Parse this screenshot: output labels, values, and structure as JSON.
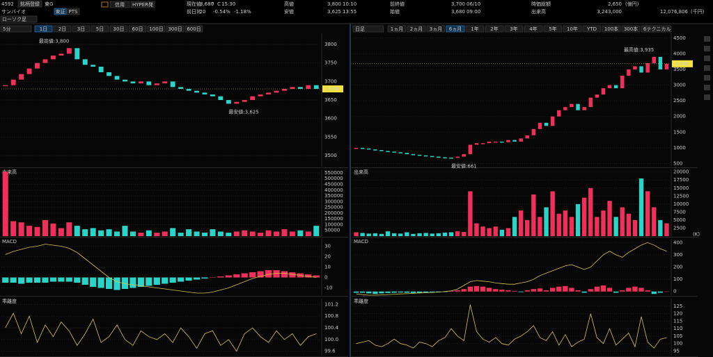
{
  "header": {
    "code": "4592",
    "buttons": [
      "銘柄登録",
      "東G",
      "東証",
      "PTS"
    ],
    "tags": [
      "信用",
      "HYPER発"
    ],
    "name": "サンバイオ",
    "chart_type": "ローソク足",
    "fields": [
      {
        "label": "現在値",
        "parts": [
          "3,680",
          "↑",
          "C",
          "15:30"
        ]
      },
      {
        "label": "前日比",
        "parts": [
          "-20",
          "-0.54%",
          "-1.18%"
        ]
      },
      {
        "label": "高値",
        "parts": [
          "3,800",
          "10:10"
        ]
      },
      {
        "label": "安値",
        "parts": [
          "3,625",
          "13:55"
        ]
      },
      {
        "label": "前終値",
        "parts": [
          "3,700",
          "06/10"
        ]
      },
      {
        "label": "始値",
        "parts": [
          "3,680",
          "09:00"
        ]
      },
      {
        "label": "時価総額",
        "parts": [
          "2,650",
          "(億円)"
        ]
      },
      {
        "label": "出来高",
        "parts": [
          "3,243,000",
          "12,076,806",
          "(千円)"
        ]
      }
    ]
  },
  "charts": [
    {
      "period": "5分",
      "ranges": [
        "1日",
        "2日",
        "3日",
        "5日",
        "30日",
        "60日",
        "100日",
        "300日",
        "600日"
      ],
      "active_index": 0,
      "price": {
        "ylim": [
          3470,
          3830
        ],
        "yticks": [
          3800,
          3750,
          3700,
          3650,
          3600,
          3550,
          3500
        ],
        "last_label": "3,680",
        "high_label": "最高値:3,800",
        "low_label": "最安値:3,625",
        "values": [
          3690,
          3705,
          3720,
          3735,
          3750,
          3760,
          3770,
          3775,
          3790,
          3760,
          3745,
          3740,
          3725,
          3715,
          3705,
          3700,
          3695,
          3700,
          3690,
          3695,
          3700,
          3685,
          3680,
          3675,
          3670,
          3665,
          3660,
          3650,
          3640,
          3645,
          3650,
          3660,
          3665,
          3670,
          3675,
          3680,
          3685,
          3680,
          3690,
          3680
        ]
      },
      "volume": {
        "title": "出来高",
        "ylim": [
          0,
          580000
        ],
        "yticks": [
          550000,
          500000,
          450000,
          400000,
          350000,
          300000,
          250000,
          200000,
          150000,
          100000,
          50000
        ],
        "values": [
          560000,
          130000,
          120000,
          90000,
          80000,
          140000,
          110000,
          70000,
          120000,
          90000,
          60000,
          70000,
          50000,
          60000,
          40000,
          90000,
          40000,
          30000,
          50000,
          30000,
          40000,
          70000,
          30000,
          60000,
          40000,
          30000,
          60000,
          40000,
          30000,
          40000,
          50000,
          40000,
          30000,
          50000,
          40000,
          60000,
          40000,
          50000,
          40000,
          90000
        ]
      },
      "macd": {
        "title": "MACD",
        "ylim": [
          -17,
          37
        ],
        "yticks": [
          30,
          20,
          10,
          0,
          -10
        ],
        "hist": [
          -5,
          -5,
          -6,
          -5,
          -5,
          -5,
          -4,
          -4,
          -4,
          -5,
          -7,
          -9,
          -10,
          -11,
          -12,
          -11,
          -10,
          -9,
          -8,
          -7,
          -6,
          -5,
          -4,
          -3,
          -2,
          -1,
          0,
          1,
          2,
          3,
          4,
          5,
          6,
          7,
          7,
          6,
          5,
          4,
          3,
          2
        ],
        "line": [
          22,
          25,
          27,
          29,
          30,
          32,
          31,
          30,
          28,
          24,
          18,
          12,
          6,
          0,
          -4,
          -6,
          -7,
          -8,
          -9,
          -10,
          -11,
          -12,
          -13,
          -14,
          -15,
          -15,
          -14,
          -12,
          -10,
          -7,
          -4,
          -1,
          1,
          3,
          4,
          4,
          3,
          2,
          1,
          0
        ]
      },
      "kairi": {
        "title": "乖離度",
        "ylim": [
          99.45,
          101.4
        ],
        "yticks": [
          101.2,
          100.8,
          100.4,
          {
            "value": 100,
            "label": "100.0"
          },
          99.6
        ],
        "values": [
          100.4,
          100.9,
          100.2,
          100.8,
          99.9,
          100.5,
          100.1,
          100.6,
          100.3,
          99.8,
          100.2,
          100.7,
          99.9,
          100.1,
          100.5,
          100,
          99.8,
          100.3,
          100.1,
          100,
          100.2,
          99.9,
          100.4,
          100.1,
          99.7,
          100.2,
          100.3,
          99.8,
          100,
          99.6,
          100.2,
          100.4,
          100.1,
          99.9,
          100.3,
          100,
          100.2,
          99.8,
          100.1,
          100.2
        ]
      }
    },
    {
      "period": "日足",
      "ranges": [
        "1ヵ月",
        "2ヵ月",
        "3ヵ月",
        "6ヵ月",
        "1年",
        "2年",
        "3年",
        "4年",
        "5年",
        "10年",
        "YTD",
        "100本",
        "300本",
        "600本"
      ],
      "active_index": 3,
      "tool": "テクニカル",
      "price": {
        "ylim": [
          400,
          4650
        ],
        "yticks": [
          4500,
          4000,
          3500,
          3000,
          2500,
          2000,
          1500,
          1000,
          500
        ],
        "last_label": "3,680",
        "high_label": "最高値:3,935",
        "low_label": "最安値:661",
        "values": [
          1000,
          980,
          950,
          930,
          900,
          880,
          860,
          840,
          800,
          780,
          760,
          740,
          720,
          700,
          690,
          680,
          720,
          800,
          1100,
          1150,
          1150,
          1200,
          1200,
          1180,
          1250,
          1200,
          1300,
          1400,
          1600,
          1800,
          1700,
          2000,
          2200,
          2300,
          2400,
          2200,
          2300,
          2600,
          2700,
          2900,
          3000,
          2900,
          3300,
          3500,
          3600,
          3400,
          3700,
          3900,
          3500,
          3680
        ]
      },
      "volume": {
        "title": "出来高",
        "unit": "(K)",
        "ylim": [
          0,
          20800
        ],
        "yticks": [
          20000,
          17500,
          15000,
          12500,
          10000,
          7500,
          5000,
          2500
        ],
        "values": [
          1200,
          1000,
          800,
          900,
          700,
          1500,
          900,
          800,
          1200,
          700,
          900,
          1000,
          800,
          900,
          1100,
          1200,
          1500,
          1300,
          14000,
          4000,
          3000,
          2500,
          3000,
          2000,
          2500,
          6000,
          8000,
          5000,
          13000,
          6000,
          9000,
          14000,
          7000,
          8000,
          6000,
          10000,
          12000,
          15000,
          6000,
          8000,
          11000,
          6000,
          9000,
          7000,
          5000,
          18000,
          14000,
          9000,
          5000,
          4000
        ]
      },
      "macd": {
        "title": "MACD",
        "ylim": [
          -30,
          430
        ],
        "yticks": [
          400,
          300,
          200,
          100,
          0
        ],
        "hist": [
          -10,
          -10,
          -15,
          -20,
          -15,
          -12,
          -10,
          -8,
          -10,
          -12,
          -10,
          -8,
          -6,
          -5,
          -4,
          5,
          10,
          20,
          40,
          45,
          40,
          30,
          20,
          15,
          10,
          5,
          -5,
          10,
          20,
          25,
          10,
          30,
          40,
          45,
          30,
          10,
          -10,
          20,
          40,
          50,
          30,
          -10,
          10,
          30,
          40,
          30,
          10,
          -20,
          -10,
          0
        ],
        "line": [
          -20,
          -25,
          -30,
          -30,
          -28,
          -25,
          -22,
          -20,
          -18,
          -15,
          -12,
          -10,
          -8,
          -5,
          0,
          5,
          20,
          50,
          80,
          90,
          85,
          80,
          70,
          65,
          60,
          60,
          70,
          80,
          100,
          130,
          150,
          170,
          190,
          210,
          220,
          200,
          180,
          200,
          250,
          300,
          330,
          300,
          280,
          320,
          350,
          380,
          400,
          380,
          350,
          330
        ]
      },
      "kairi": {
        "title": "乖離度",
        "ylim": [
          92,
          130
        ],
        "yticks": [
          125,
          120,
          115,
          110,
          105,
          100,
          95
        ],
        "values": [
          100,
          101,
          102,
          99,
          98,
          100,
          103,
          100,
          99,
          97,
          101,
          100,
          98,
          102,
          104,
          110,
          105,
          102,
          126,
          108,
          103,
          101,
          104,
          100,
          99,
          103,
          105,
          108,
          112,
          104,
          102,
          108,
          99,
          106,
          98,
          101,
          103,
          120,
          104,
          100,
          110,
          99,
          103,
          107,
          98,
          118,
          101,
          97,
          103,
          104
        ]
      }
    }
  ]
}
